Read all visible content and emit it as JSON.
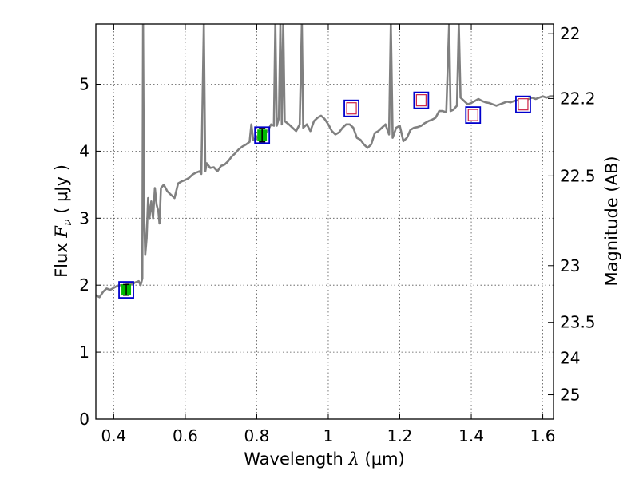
{
  "chart_data": {
    "type": "line",
    "xlabel_prefix": "Wavelength",
    "xlabel_symbol": "λ",
    "xlabel_unit": "(μm)",
    "ylabel_prefix": "Flux",
    "ylabel_symbol": "F",
    "ylabel_subscript": "ν",
    "ylabel_unit": "( μJy )",
    "y2label": "Magnitude (AB)",
    "xlim": [
      0.35,
      1.63
    ],
    "ylim": [
      0,
      5.9
    ],
    "grid": true,
    "x_ticks": [
      0.4,
      0.6,
      0.8,
      1.0,
      1.2,
      1.4,
      1.6
    ],
    "x_tick_labels": [
      "0.4",
      "0.6",
      "0.8",
      "1",
      "1.2",
      "1.4",
      "1.6"
    ],
    "y_ticks": [
      0,
      1,
      2,
      3,
      4,
      5
    ],
    "y_tick_labels": [
      "0",
      "1",
      "2",
      "3",
      "4",
      "5"
    ],
    "y2_ticks": [
      22,
      22.2,
      22.5,
      23,
      23.5,
      24,
      25
    ],
    "y2_tick_labels": [
      "22",
      "22.2",
      "22.5",
      "23",
      "23.5",
      "24",
      "25"
    ],
    "series": [
      {
        "color": "#808080",
        "points": [
          [
            0.35,
            1.85
          ],
          [
            0.36,
            1.82
          ],
          [
            0.37,
            1.9
          ],
          [
            0.38,
            1.95
          ],
          [
            0.39,
            1.93
          ],
          [
            0.4,
            1.96
          ],
          [
            0.41,
            1.99
          ],
          [
            0.42,
            2.0
          ],
          [
            0.43,
            2.0
          ],
          [
            0.44,
            2.02
          ],
          [
            0.45,
            2.01
          ],
          [
            0.46,
            2.04
          ],
          [
            0.47,
            2.06
          ],
          [
            0.475,
            2.0
          ],
          [
            0.48,
            2.1
          ],
          [
            0.482,
            5.9
          ],
          [
            0.485,
            3.1
          ],
          [
            0.488,
            2.45
          ],
          [
            0.492,
            2.7
          ],
          [
            0.496,
            3.3
          ],
          [
            0.5,
            3.0
          ],
          [
            0.505,
            3.25
          ],
          [
            0.51,
            3.0
          ],
          [
            0.515,
            3.45
          ],
          [
            0.52,
            3.2
          ],
          [
            0.525,
            3.1
          ],
          [
            0.528,
            2.92
          ],
          [
            0.532,
            3.45
          ],
          [
            0.54,
            3.5
          ],
          [
            0.55,
            3.4
          ],
          [
            0.56,
            3.35
          ],
          [
            0.57,
            3.3
          ],
          [
            0.58,
            3.52
          ],
          [
            0.59,
            3.55
          ],
          [
            0.6,
            3.57
          ],
          [
            0.61,
            3.6
          ],
          [
            0.62,
            3.65
          ],
          [
            0.63,
            3.68
          ],
          [
            0.64,
            3.7
          ],
          [
            0.645,
            3.66
          ],
          [
            0.652,
            5.9
          ],
          [
            0.656,
            3.7
          ],
          [
            0.66,
            3.82
          ],
          [
            0.67,
            3.75
          ],
          [
            0.68,
            3.76
          ],
          [
            0.69,
            3.7
          ],
          [
            0.7,
            3.78
          ],
          [
            0.71,
            3.8
          ],
          [
            0.72,
            3.85
          ],
          [
            0.73,
            3.92
          ],
          [
            0.74,
            3.97
          ],
          [
            0.75,
            4.03
          ],
          [
            0.76,
            4.07
          ],
          [
            0.77,
            4.1
          ],
          [
            0.78,
            4.14
          ],
          [
            0.785,
            4.4
          ],
          [
            0.79,
            4.17
          ],
          [
            0.8,
            4.2
          ],
          [
            0.81,
            4.23
          ],
          [
            0.82,
            4.25
          ],
          [
            0.83,
            4.3
          ],
          [
            0.84,
            4.4
          ],
          [
            0.848,
            4.38
          ],
          [
            0.852,
            5.9
          ],
          [
            0.856,
            4.38
          ],
          [
            0.862,
            4.5
          ],
          [
            0.866,
            5.9
          ],
          [
            0.87,
            4.4
          ],
          [
            0.874,
            5.9
          ],
          [
            0.878,
            4.45
          ],
          [
            0.89,
            4.4
          ],
          [
            0.9,
            4.35
          ],
          [
            0.91,
            4.3
          ],
          [
            0.92,
            4.4
          ],
          [
            0.926,
            5.9
          ],
          [
            0.93,
            4.35
          ],
          [
            0.94,
            4.4
          ],
          [
            0.95,
            4.3
          ],
          [
            0.96,
            4.45
          ],
          [
            0.97,
            4.5
          ],
          [
            0.98,
            4.53
          ],
          [
            0.99,
            4.48
          ],
          [
            1.0,
            4.4
          ],
          [
            1.01,
            4.3
          ],
          [
            1.02,
            4.25
          ],
          [
            1.03,
            4.28
          ],
          [
            1.04,
            4.35
          ],
          [
            1.05,
            4.4
          ],
          [
            1.06,
            4.4
          ],
          [
            1.07,
            4.35
          ],
          [
            1.08,
            4.2
          ],
          [
            1.09,
            4.17
          ],
          [
            1.1,
            4.1
          ],
          [
            1.11,
            4.05
          ],
          [
            1.12,
            4.1
          ],
          [
            1.13,
            4.27
          ],
          [
            1.14,
            4.3
          ],
          [
            1.15,
            4.35
          ],
          [
            1.16,
            4.4
          ],
          [
            1.17,
            4.25
          ],
          [
            1.175,
            5.9
          ],
          [
            1.18,
            4.2
          ],
          [
            1.19,
            4.35
          ],
          [
            1.2,
            4.38
          ],
          [
            1.21,
            4.15
          ],
          [
            1.22,
            4.2
          ],
          [
            1.23,
            4.32
          ],
          [
            1.24,
            4.35
          ],
          [
            1.25,
            4.36
          ],
          [
            1.26,
            4.38
          ],
          [
            1.27,
            4.42
          ],
          [
            1.28,
            4.45
          ],
          [
            1.29,
            4.47
          ],
          [
            1.3,
            4.5
          ],
          [
            1.31,
            4.6
          ],
          [
            1.32,
            4.6
          ],
          [
            1.33,
            4.58
          ],
          [
            1.338,
            5.9
          ],
          [
            1.342,
            4.6
          ],
          [
            1.35,
            4.62
          ],
          [
            1.36,
            4.68
          ],
          [
            1.365,
            5.9
          ],
          [
            1.37,
            4.8
          ],
          [
            1.38,
            4.75
          ],
          [
            1.39,
            4.7
          ],
          [
            1.4,
            4.72
          ],
          [
            1.41,
            4.75
          ],
          [
            1.42,
            4.78
          ],
          [
            1.43,
            4.75
          ],
          [
            1.44,
            4.73
          ],
          [
            1.45,
            4.72
          ],
          [
            1.46,
            4.7
          ],
          [
            1.47,
            4.68
          ],
          [
            1.48,
            4.7
          ],
          [
            1.49,
            4.72
          ],
          [
            1.5,
            4.74
          ],
          [
            1.51,
            4.73
          ],
          [
            1.52,
            4.75
          ],
          [
            1.53,
            4.76
          ],
          [
            1.54,
            4.74
          ],
          [
            1.55,
            4.75
          ],
          [
            1.56,
            4.78
          ],
          [
            1.57,
            4.8
          ],
          [
            1.58,
            4.78
          ],
          [
            1.59,
            4.8
          ],
          [
            1.6,
            4.82
          ],
          [
            1.61,
            4.8
          ],
          [
            1.62,
            4.82
          ],
          [
            1.63,
            4.82
          ]
        ]
      }
    ],
    "model_points": [
      {
        "x": 0.435,
        "y": 1.93
      },
      {
        "x": 0.815,
        "y": 4.24
      },
      {
        "x": 1.065,
        "y": 4.64
      },
      {
        "x": 1.26,
        "y": 4.76
      },
      {
        "x": 1.405,
        "y": 4.54
      },
      {
        "x": 1.545,
        "y": 4.7
      }
    ],
    "observed_points": [
      {
        "x": 0.435,
        "y": 1.93,
        "err": 0.08,
        "detected": true
      },
      {
        "x": 0.815,
        "y": 4.24,
        "err": 0.1,
        "detected": true
      },
      {
        "x": 1.065,
        "y": 4.64,
        "detected": false
      },
      {
        "x": 1.26,
        "y": 4.76,
        "detected": false
      },
      {
        "x": 1.405,
        "y": 4.54,
        "detected": false
      },
      {
        "x": 1.545,
        "y": 4.7,
        "detected": false
      }
    ],
    "colors": {
      "spectrum": "#808080",
      "model_box": "#0000cc",
      "detected_fill": "#00bb00",
      "upper_limit_edge": "#cc2244",
      "axis": "#000000",
      "grid": "#555555"
    }
  }
}
